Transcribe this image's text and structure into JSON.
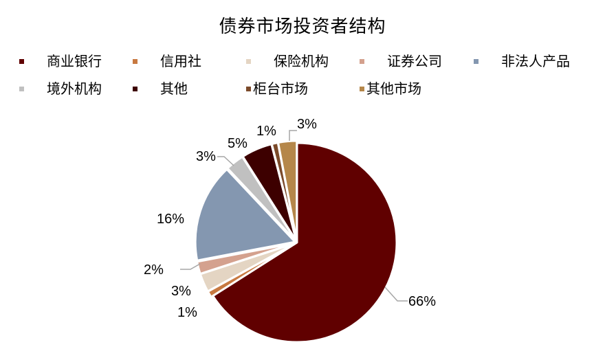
{
  "chart_data": {
    "type": "pie",
    "title": "债券市场投资者结构",
    "categories": [
      "商业银行",
      "信用社",
      "保险机构",
      "证券公司",
      "非法人产品",
      "境外机构",
      "其他",
      "柜台市场",
      "其他市场"
    ],
    "values": [
      66,
      1,
      3,
      2,
      16,
      3,
      5,
      1,
      3
    ],
    "labels": [
      "66%",
      "1%",
      "3%",
      "2%",
      "16%",
      "3%",
      "5%",
      "1%",
      "3%"
    ],
    "colors": [
      "#600000",
      "#C87941",
      "#E4D5C3",
      "#D4A18E",
      "#8497B0",
      "#C0C0C0",
      "#3D0000",
      "#7B4A2A",
      "#B5874A"
    ],
    "legend_position": "top",
    "start_angle": "12 o'clock, clockwise"
  },
  "title": "债券市场投资者结构",
  "legend": [
    {
      "label": "商业银行",
      "color": "#600000"
    },
    {
      "label": "信用社",
      "color": "#C87941"
    },
    {
      "label": "保险机构",
      "color": "#E4D5C3"
    },
    {
      "label": "证券公司",
      "color": "#D4A18E"
    },
    {
      "label": "非法人产品",
      "color": "#8497B0"
    },
    {
      "label": "境外机构",
      "color": "#C0C0C0"
    },
    {
      "label": "其他",
      "color": "#3D0000"
    },
    {
      "label": "柜台市场",
      "color": "#7B4A2A"
    },
    {
      "label": "其他市场",
      "color": "#B5874A"
    }
  ]
}
